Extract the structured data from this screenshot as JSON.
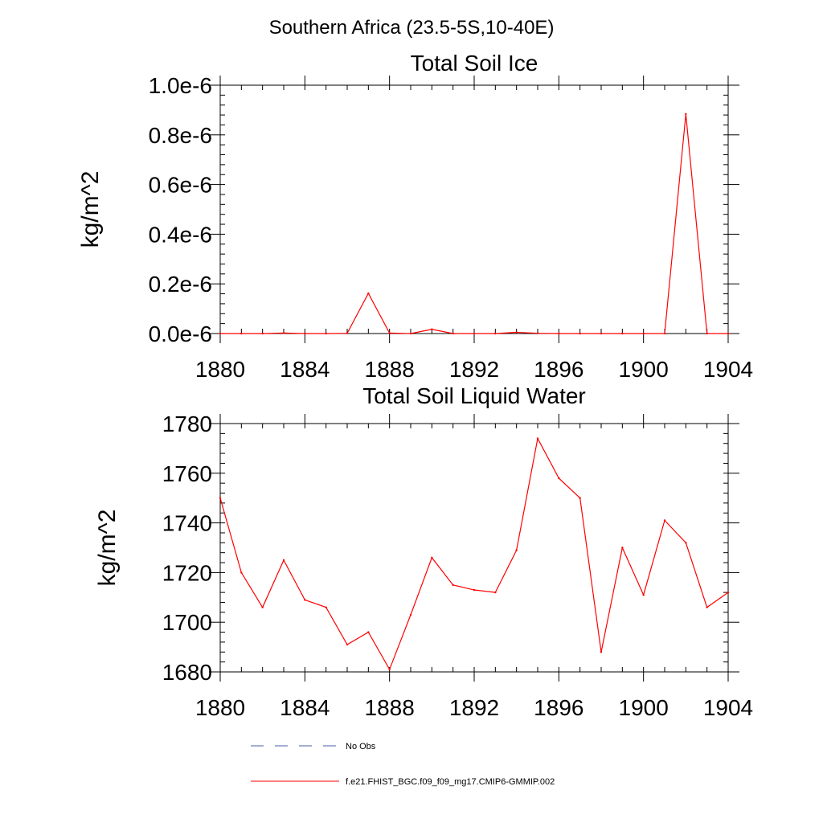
{
  "figure": {
    "title": "Southern Africa (23.5-5S,10-40E)"
  },
  "legend": {
    "entries": [
      {
        "label": "No Obs",
        "color": "#4a5fa8",
        "style": "dashed"
      },
      {
        "label": "f.e21.FHIST_BGC.f09_f09_mg17.CMIP6-GMMIP.002",
        "color": "#ff0000",
        "style": "solid"
      }
    ]
  },
  "chart_data": [
    {
      "type": "line",
      "title": "Total Soil Ice",
      "xlabel": "",
      "ylabel": "kg/m^2",
      "xlim": [
        1880,
        1904
      ],
      "ylim": [
        0,
        1e-06
      ],
      "x_ticks": [
        1880,
        1884,
        1888,
        1892,
        1896,
        1900,
        1904
      ],
      "x_tick_labels": [
        "1880",
        "1884",
        "1888",
        "1892",
        "1896",
        "1900",
        "1904"
      ],
      "y_ticks": [
        0,
        2e-07,
        4e-07,
        6e-07,
        8e-07,
        1e-06
      ],
      "y_tick_labels": [
        "0.0e-6",
        "0.2e-6",
        "0.4e-6",
        "0.6e-6",
        "0.8e-6",
        "1.0e-6"
      ],
      "y_minor_step": 4e-08,
      "grid": false,
      "x": [
        1880,
        1881,
        1882,
        1883,
        1884,
        1885,
        1886,
        1887,
        1888,
        1889,
        1890,
        1891,
        1892,
        1893,
        1894,
        1895,
        1896,
        1897,
        1898,
        1899,
        1900,
        1901,
        1902,
        1903,
        1904
      ],
      "series": [
        {
          "color": "#ff0000",
          "values": [
            0,
            0,
            0,
            2e-09,
            0,
            0,
            1e-09,
            1.62e-07,
            2e-09,
            0,
            1.7e-08,
            0,
            0,
            0,
            5e-09,
            1e-09,
            0,
            0,
            0,
            0,
            0,
            0,
            8.84e-07,
            0,
            0
          ]
        }
      ]
    },
    {
      "type": "line",
      "title": "Total Soil Liquid Water",
      "xlabel": "",
      "ylabel": "kg/m^2",
      "xlim": [
        1880,
        1904
      ],
      "ylim": [
        1680,
        1780
      ],
      "x_ticks": [
        1880,
        1884,
        1888,
        1892,
        1896,
        1900,
        1904
      ],
      "x_tick_labels": [
        "1880",
        "1884",
        "1888",
        "1892",
        "1896",
        "1900",
        "1904"
      ],
      "y_ticks": [
        1680,
        1700,
        1720,
        1740,
        1760,
        1780
      ],
      "y_tick_labels": [
        "1680",
        "1700",
        "1720",
        "1740",
        "1760",
        "1780"
      ],
      "y_minor_step": 4,
      "grid": false,
      "x": [
        1880,
        1881,
        1882,
        1883,
        1884,
        1885,
        1886,
        1887,
        1888,
        1889,
        1890,
        1891,
        1892,
        1893,
        1894,
        1895,
        1896,
        1897,
        1898,
        1899,
        1900,
        1901,
        1902,
        1903,
        1904
      ],
      "series": [
        {
          "color": "#ff0000",
          "values": [
            1750,
            1720,
            1706,
            1725,
            1709,
            1706,
            1691,
            1696,
            1681,
            1703,
            1726,
            1715,
            1713,
            1712,
            1729,
            1774,
            1758,
            1750,
            1688,
            1730,
            1711,
            1741,
            1732,
            1706,
            1712
          ]
        }
      ]
    }
  ]
}
